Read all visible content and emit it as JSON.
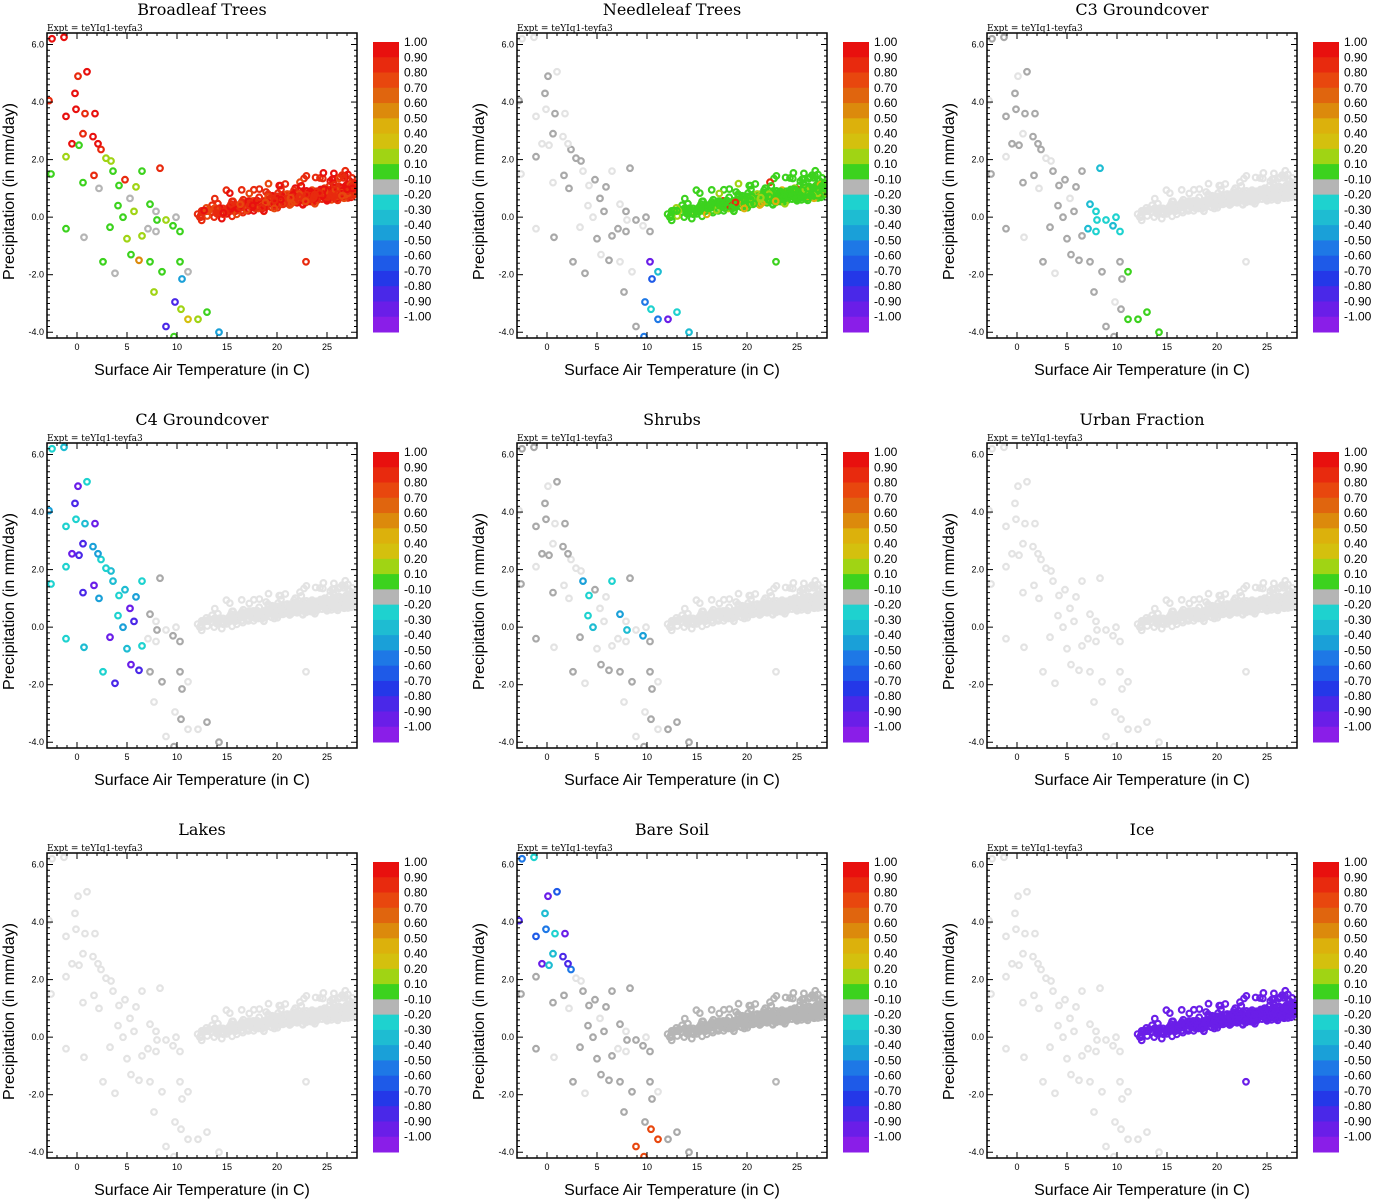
{
  "figure": {
    "expt_label": "Expt = teYIq1-teyfa3",
    "xlabel": "Surface Air Temperature (in C)",
    "ylabel": "Precipitation (in mm/day)"
  },
  "chart_data": {
    "type": "scatter",
    "xlim": [
      -3,
      28
    ],
    "ylim": [
      -4.2,
      6.4
    ],
    "xticks": [
      0,
      5,
      10,
      15,
      20,
      25
    ],
    "yticks": [
      -4.0,
      -2.0,
      0.0,
      2.0,
      4.0,
      6.0
    ],
    "xtick_labels": [
      "0",
      "5",
      "10",
      "15",
      "20",
      "25"
    ],
    "ytick_labels": [
      "-4.0",
      "-2.0",
      "0.0",
      "2.0",
      "4.0",
      "6.0"
    ],
    "colorbar": {
      "labels": [
        "1.00",
        "0.90",
        "0.80",
        "0.70",
        "0.60",
        "0.50",
        "0.40",
        "0.20",
        "0.10",
        "-0.10",
        "-0.20",
        "-0.30",
        "-0.40",
        "-0.50",
        "-0.60",
        "-0.70",
        "-0.80",
        "-0.90",
        "-1.00"
      ],
      "colors": [
        "#e8100e",
        "#e82a0e",
        "#e8470e",
        "#e0650e",
        "#dc8a0c",
        "#dcb10c",
        "#d4c00e",
        "#a0d414",
        "#3cd21e",
        "#b5b5b5",
        "#1ed2cf",
        "#1ebcd2",
        "#1aa0d8",
        "#1e78e6",
        "#1e5ae8",
        "#2438e8",
        "#4a28e8",
        "#6a1ee8",
        "#8a1ee8"
      ]
    },
    "panels": [
      {
        "title": "Broadleaf Trees",
        "color_mode": "broadleaf"
      },
      {
        "title": "Needleleaf Trees",
        "color_mode": "needleleaf"
      },
      {
        "title": "C3 Groundcover",
        "color_mode": "c3"
      },
      {
        "title": "C4 Groundcover",
        "color_mode": "c4"
      },
      {
        "title": "Shrubs",
        "color_mode": "shrubs"
      },
      {
        "title": "Urban Fraction",
        "color_mode": "urban"
      },
      {
        "title": "Lakes",
        "color_mode": "lakes"
      },
      {
        "title": "Bare Soil",
        "color_mode": "baresoil"
      },
      {
        "title": "Ice",
        "color_mode": "ice"
      }
    ],
    "points_cold": [
      [
        -2.5,
        6.2
      ],
      [
        -1.3,
        6.25
      ],
      [
        0.1,
        4.9
      ],
      [
        1,
        5.05
      ],
      [
        -0.2,
        4.3
      ],
      [
        -2.8,
        4.05
      ],
      [
        -0.1,
        3.75
      ],
      [
        0.8,
        3.6
      ],
      [
        1.8,
        3.6
      ],
      [
        -1.1,
        3.5
      ],
      [
        0.6,
        2.9
      ],
      [
        1.6,
        2.8
      ],
      [
        2.4,
        2.35
      ],
      [
        3.4,
        1.95
      ],
      [
        -0.5,
        2.55
      ],
      [
        -1.1,
        2.1
      ],
      [
        0.2,
        2.5
      ],
      [
        2.1,
        2.55
      ],
      [
        2.9,
        2.05
      ],
      [
        3.6,
        1.6
      ],
      [
        1.7,
        1.45
      ],
      [
        -2.6,
        1.5
      ],
      [
        0.6,
        1.2
      ],
      [
        2.2,
        1.0
      ],
      [
        4.2,
        1.1
      ],
      [
        4.8,
        1.3
      ],
      [
        5.3,
        0.65
      ],
      [
        4.1,
        0.4
      ],
      [
        5.7,
        0.2
      ],
      [
        4.6,
        0.0
      ],
      [
        -1.1,
        -0.4
      ],
      [
        0.7,
        -0.7
      ],
      [
        3.3,
        -0.35
      ],
      [
        6.5,
        -0.65
      ],
      [
        7.1,
        -0.4
      ],
      [
        8.0,
        -0.1
      ],
      [
        8.9,
        -0.1
      ],
      [
        9.6,
        -0.3
      ],
      [
        10.3,
        -0.5
      ],
      [
        7.9,
        0.2
      ],
      [
        7.3,
        0.45
      ],
      [
        5.9,
        1.05
      ],
      [
        6.5,
        1.6
      ],
      [
        8.3,
        1.7
      ],
      [
        9.9,
        0.0
      ],
      [
        7.3,
        -1.55
      ],
      [
        6.2,
        -1.5
      ],
      [
        7.9,
        -0.5
      ],
      [
        8.5,
        -1.9
      ],
      [
        5.0,
        -0.75
      ],
      [
        5.4,
        -1.3
      ],
      [
        2.6,
        -1.55
      ],
      [
        3.8,
        -1.95
      ],
      [
        10.3,
        -1.55
      ],
      [
        7.7,
        -2.6
      ],
      [
        11.1,
        -1.9
      ],
      [
        10.5,
        -2.15
      ],
      [
        9.8,
        -2.95
      ],
      [
        13,
        -3.3
      ],
      [
        12.1,
        -3.55
      ],
      [
        11.1,
        -3.55
      ],
      [
        14.2,
        -4.0
      ],
      [
        8.9,
        -3.8
      ],
      [
        9.7,
        -4.15
      ],
      [
        10.4,
        -3.2
      ]
    ],
    "points_warm_count": 520,
    "outlier_warm": [
      [
        22.9,
        -1.55
      ]
    ]
  }
}
